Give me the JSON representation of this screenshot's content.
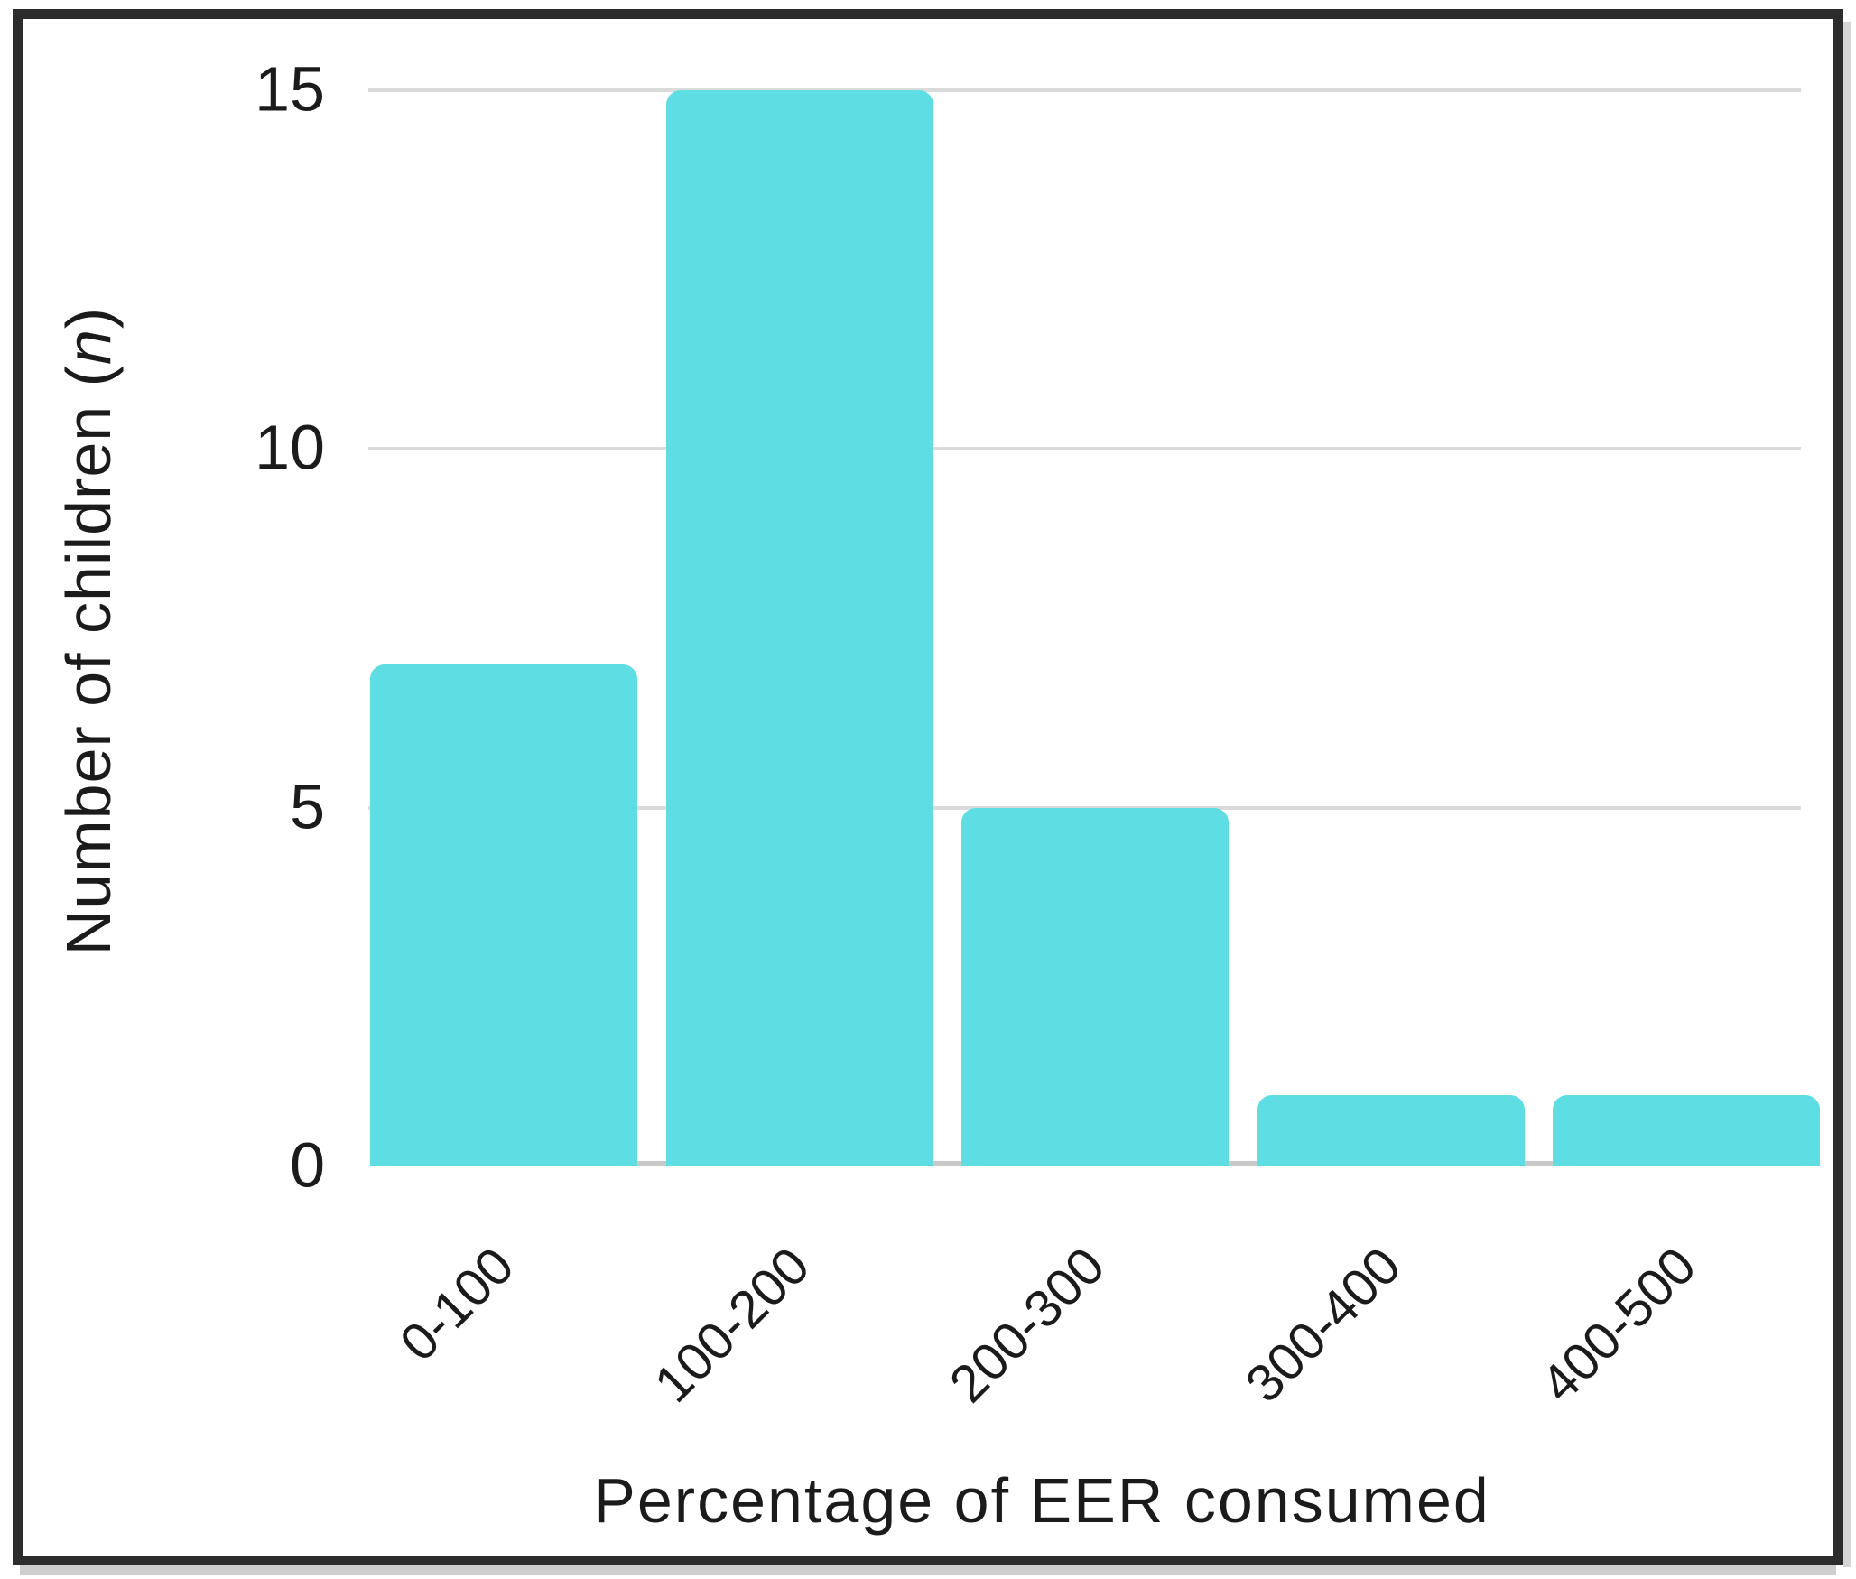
{
  "chart_data": {
    "type": "bar",
    "title": "",
    "categories": [
      "0-100",
      "100-200",
      "200-300",
      "300-400",
      "400-500"
    ],
    "values": [
      7,
      15,
      5,
      1,
      1
    ],
    "xlabel": "Percentage of EER consumed",
    "ylabel": "Number of children (n)",
    "ylabel_parts": {
      "prefix": "Number of children (",
      "italic": "n",
      "suffix": ")"
    },
    "yticks": [
      0,
      5,
      10,
      15
    ],
    "ylim": [
      0,
      15
    ],
    "grid": "horizontal",
    "legend_position": "none",
    "bar_style": "rounded-top-corners",
    "colors": {
      "bar": "#5edee3",
      "gridline": "#dbdbdb",
      "axis_line": "#c9c9c9",
      "text": "#1b1b1b",
      "frame_border": "#2c2c2c",
      "background": "#ffffff",
      "scan_edge": "#c5c5c5"
    }
  }
}
